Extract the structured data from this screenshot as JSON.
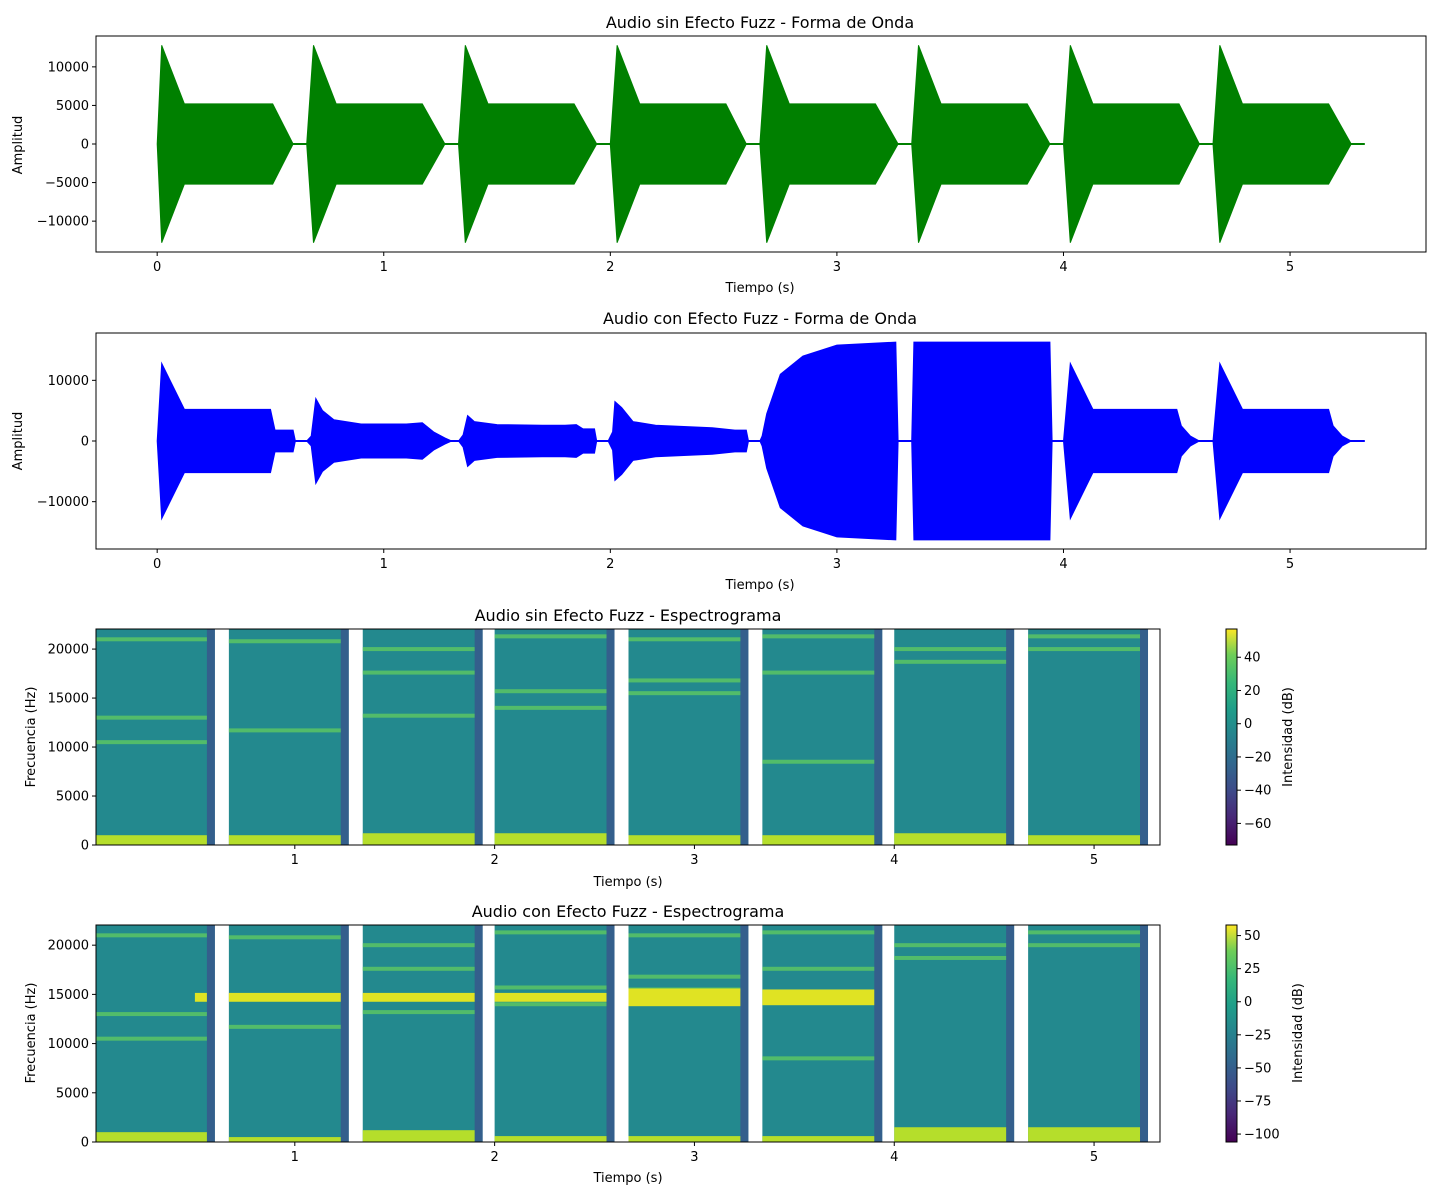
{
  "chart_data": [
    {
      "type": "area",
      "title": "Audio sin Efecto Fuzz - Forma de Onda",
      "xlabel": "Tiempo (s)",
      "ylabel": "Amplitud",
      "xlim": [
        -0.27,
        5.6
      ],
      "ylim": [
        -14000,
        14000
      ],
      "xticks": [
        0,
        1,
        2,
        3,
        4,
        5
      ],
      "yticks": [
        -10000,
        -5000,
        0,
        5000,
        10000
      ],
      "ytick_labels": [
        "−10000",
        "−5000",
        "0",
        "5000",
        "10000"
      ],
      "color": "#008000",
      "series": [
        {
          "envelope": [
            [
              0,
              0
            ],
            [
              0.02,
              12800
            ],
            [
              0.12,
              5200
            ],
            [
              0.51,
              5200
            ],
            [
              0.6,
              0
            ],
            [
              0.66,
              0
            ],
            [
              0.69,
              12800
            ],
            [
              0.79,
              5200
            ],
            [
              1.17,
              5200
            ],
            [
              1.27,
              0
            ],
            [
              1.33,
              0
            ],
            [
              1.36,
              12800
            ],
            [
              1.46,
              5200
            ],
            [
              1.84,
              5200
            ],
            [
              1.94,
              0
            ],
            [
              2,
              0
            ],
            [
              2.03,
              12800
            ],
            [
              2.13,
              5200
            ],
            [
              2.51,
              5200
            ],
            [
              2.6,
              0
            ],
            [
              2.66,
              0
            ],
            [
              2.69,
              12800
            ],
            [
              2.79,
              5200
            ],
            [
              3.17,
              5200
            ],
            [
              3.27,
              0
            ],
            [
              3.33,
              0
            ],
            [
              3.36,
              12800
            ],
            [
              3.46,
              5200
            ],
            [
              3.84,
              5200
            ],
            [
              3.94,
              0
            ],
            [
              4,
              0
            ],
            [
              4.03,
              12800
            ],
            [
              4.13,
              5200
            ],
            [
              4.51,
              5200
            ],
            [
              4.6,
              0
            ],
            [
              4.66,
              0
            ],
            [
              4.69,
              12800
            ],
            [
              4.79,
              5200
            ],
            [
              5.17,
              5200
            ],
            [
              5.27,
              0
            ],
            [
              5.33,
              0
            ]
          ]
        }
      ]
    },
    {
      "type": "area",
      "title": "Audio con Efecto Fuzz - Forma de Onda",
      "xlabel": "Tiempo (s)",
      "ylabel": "Amplitud",
      "xlim": [
        -0.27,
        5.6
      ],
      "ylim": [
        -17800,
        17800
      ],
      "xticks": [
        0,
        1,
        2,
        3,
        4,
        5
      ],
      "yticks": [
        -10000,
        0,
        10000
      ],
      "ytick_labels": [
        "−10000",
        "0",
        "10000"
      ],
      "color": "#0000ff",
      "series": [
        {
          "envelope": [
            [
              0,
              0
            ],
            [
              0.02,
              12800
            ],
            [
              0.12,
              5200
            ],
            [
              0.5,
              5200
            ],
            [
              0.52,
              1800
            ],
            [
              0.6,
              1800
            ],
            [
              0.61,
              0
            ],
            [
              0.66,
              0
            ],
            [
              0.68,
              800
            ],
            [
              0.7,
              7000
            ],
            [
              0.73,
              5000
            ],
            [
              0.78,
              3500
            ],
            [
              0.9,
              2800
            ],
            [
              1.1,
              2800
            ],
            [
              1.17,
              3000
            ],
            [
              1.22,
              1500
            ],
            [
              1.27,
              500
            ],
            [
              1.3,
              0
            ],
            [
              1.33,
              0
            ],
            [
              1.35,
              1000
            ],
            [
              1.37,
              4200
            ],
            [
              1.4,
              3200
            ],
            [
              1.5,
              2700
            ],
            [
              1.7,
              2600
            ],
            [
              1.8,
              2600
            ],
            [
              1.85,
              2700
            ],
            [
              1.88,
              2000
            ],
            [
              1.93,
              2000
            ],
            [
              1.94,
              0
            ],
            [
              1.99,
              0
            ],
            [
              2.01,
              1500
            ],
            [
              2.02,
              6500
            ],
            [
              2.05,
              5500
            ],
            [
              2.1,
              3200
            ],
            [
              2.2,
              2600
            ],
            [
              2.45,
              2200
            ],
            [
              2.55,
              1800
            ],
            [
              2.6,
              1800
            ],
            [
              2.61,
              0
            ],
            [
              2.66,
              0
            ],
            [
              2.67,
              800
            ],
            [
              2.69,
              4500
            ],
            [
              2.75,
              11000
            ],
            [
              2.85,
              14000
            ],
            [
              3,
              15800
            ],
            [
              3.26,
              16300
            ],
            [
              3.27,
              0
            ],
            [
              3.33,
              0
            ],
            [
              3.34,
              16300
            ],
            [
              3.94,
              16300
            ],
            [
              3.95,
              0
            ],
            [
              4,
              0
            ],
            [
              4.03,
              12800
            ],
            [
              4.13,
              5200
            ],
            [
              4.5,
              5200
            ],
            [
              4.52,
              2500
            ],
            [
              4.56,
              800
            ],
            [
              4.6,
              0
            ],
            [
              4.66,
              0
            ],
            [
              4.69,
              12800
            ],
            [
              4.79,
              5200
            ],
            [
              5.17,
              5200
            ],
            [
              5.19,
              2500
            ],
            [
              5.23,
              800
            ],
            [
              5.27,
              0
            ],
            [
              5.33,
              0
            ]
          ]
        }
      ]
    },
    {
      "type": "heatmap",
      "title": "Audio sin Efecto Fuzz - Espectrograma",
      "xlabel": "Tiempo (s)",
      "ylabel": "Frecuencia (Hz)",
      "xlim": [
        0.005,
        5.33
      ],
      "ylim": [
        0,
        22050
      ],
      "xticks": [
        1,
        2,
        3,
        4,
        5
      ],
      "yticks": [
        0,
        5000,
        10000,
        15000,
        20000
      ],
      "colorbar": {
        "label": "Intensidad (dB)",
        "range": [
          -73,
          57
        ],
        "ticks": [
          -60,
          -40,
          -20,
          0,
          20,
          40
        ],
        "tick_labels": [
          "−60",
          "−40",
          "−20",
          "0",
          "20",
          "40"
        ]
      },
      "segments": [
        {
          "t": [
            0.005,
            0.6
          ],
          "harmonics": [
            10500,
            13000,
            21000
          ],
          "low_band": [
            0,
            1000
          ]
        },
        {
          "t": [
            0.67,
            1.27
          ],
          "harmonics": [
            11700,
            20800
          ],
          "low_band": [
            0,
            1000
          ]
        },
        {
          "t": [
            1.34,
            1.94
          ],
          "harmonics": [
            13200,
            17600,
            20000
          ],
          "low_band": [
            0,
            1200
          ]
        },
        {
          "t": [
            2.0,
            2.6
          ],
          "harmonics": [
            14000,
            15700,
            21300
          ],
          "low_band": [
            0,
            1200
          ]
        },
        {
          "t": [
            2.67,
            3.27
          ],
          "harmonics": [
            15500,
            16800,
            21000
          ],
          "low_band": [
            0,
            1000
          ]
        },
        {
          "t": [
            3.34,
            3.94
          ],
          "harmonics": [
            8500,
            17600,
            21300
          ],
          "low_band": [
            0,
            1000
          ]
        },
        {
          "t": [
            4.0,
            4.6
          ],
          "harmonics": [
            18700,
            20000
          ],
          "low_band": [
            0,
            1200
          ]
        },
        {
          "t": [
            4.67,
            5.27
          ],
          "harmonics": [
            20000,
            21300
          ],
          "low_band": [
            0,
            1000
          ]
        }
      ]
    },
    {
      "type": "heatmap",
      "title": "Audio con Efecto Fuzz - Espectrograma",
      "xlabel": "Tiempo (s)",
      "ylabel": "Frecuencia (Hz)",
      "xlim": [
        0.005,
        5.33
      ],
      "ylim": [
        0,
        22050
      ],
      "xticks": [
        1,
        2,
        3,
        4,
        5
      ],
      "yticks": [
        0,
        5000,
        10000,
        15000,
        20000
      ],
      "colorbar": {
        "label": "Intensidad (dB)",
        "range": [
          -106,
          58
        ],
        "ticks": [
          -100,
          -75,
          -50,
          -25,
          0,
          25,
          50
        ],
        "tick_labels": [
          "−100",
          "−75",
          "−50",
          "−25",
          "0",
          "25",
          "50"
        ]
      },
      "segments": [
        {
          "t": [
            0.005,
            0.6
          ],
          "harmonics": [
            10500,
            13000,
            21000
          ],
          "low_band": [
            0,
            1000
          ],
          "fuzz_line": 14700,
          "fuzz_start": 0.5
        },
        {
          "t": [
            0.67,
            1.27
          ],
          "harmonics": [
            11700,
            20800
          ],
          "low_band": [
            0,
            500
          ],
          "fuzz_line": 14700
        },
        {
          "t": [
            1.34,
            1.94
          ],
          "harmonics": [
            13200,
            17600,
            20000
          ],
          "low_band": [
            0,
            1200
          ],
          "fuzz_line": 14700
        },
        {
          "t": [
            2.0,
            2.6
          ],
          "harmonics": [
            14000,
            15700,
            21300
          ],
          "low_band": [
            0,
            600
          ],
          "fuzz_line": 14700
        },
        {
          "t": [
            2.67,
            3.27
          ],
          "harmonics": [
            15500,
            16800,
            21000
          ],
          "low_band": [
            0,
            600
          ],
          "fuzz_line": 14700,
          "fuzz_width": 1800
        },
        {
          "t": [
            3.34,
            3.94
          ],
          "harmonics": [
            8500,
            17600,
            21300
          ],
          "low_band": [
            0,
            600
          ],
          "fuzz_line": 14700,
          "fuzz_width": 1600
        },
        {
          "t": [
            4.0,
            4.6
          ],
          "harmonics": [
            18700,
            20000
          ],
          "low_band": [
            0,
            1500
          ]
        },
        {
          "t": [
            4.67,
            5.27
          ],
          "harmonics": [
            20000,
            21300
          ],
          "low_band": [
            0,
            1500
          ]
        }
      ]
    }
  ]
}
